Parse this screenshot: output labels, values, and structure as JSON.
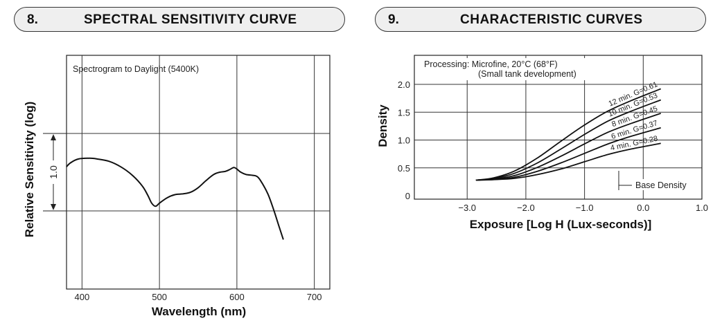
{
  "section8": {
    "number": "8.",
    "title": "SPECTRAL  SENSITIVITY  CURVE"
  },
  "section9": {
    "number": "9.",
    "title": "CHARACTERISTIC  CURVES"
  },
  "colors": {
    "line": "#111111",
    "grid": "#333333",
    "header_fill": "#efefef"
  },
  "chart_data": [
    {
      "type": "line",
      "title": "SPECTRAL SENSITIVITY CURVE",
      "annotation": "Spectrogram to Daylight (5400K)",
      "xlabel": "Wavelength (nm)",
      "ylabel": "Relative Sensitivity (log)",
      "scale_marker": "1.0",
      "xlim": [
        380,
        720
      ],
      "xticks": [
        "400",
        "500",
        "600",
        "700"
      ],
      "grid": true,
      "series": [
        {
          "x": [
            380,
            385,
            395,
            410,
            420,
            435,
            450,
            465,
            478,
            485,
            490,
            495,
            500,
            510,
            520,
            530,
            540,
            550,
            560,
            570,
            578,
            585,
            590,
            596,
            600,
            605,
            612,
            620,
            625,
            630,
            640,
            648,
            655,
            660
          ],
          "y": [
            0.57,
            0.62,
            0.67,
            0.68,
            0.67,
            0.64,
            0.57,
            0.46,
            0.32,
            0.2,
            0.1,
            0.06,
            0.1,
            0.17,
            0.21,
            0.22,
            0.24,
            0.3,
            0.39,
            0.47,
            0.5,
            0.51,
            0.53,
            0.56,
            0.54,
            0.5,
            0.47,
            0.46,
            0.45,
            0.4,
            0.22,
            0.0,
            -0.22,
            -0.37
          ]
        }
      ]
    },
    {
      "type": "line",
      "title": "CHARACTERISTIC CURVES",
      "annotation": [
        "Processing: Microfine, 20°C (68°F)",
        "(Small tank development)"
      ],
      "xlabel": "Exposure [Log H (Lux-seconds)]",
      "ylabel": "Density",
      "xlim": [
        -3.9,
        1.0
      ],
      "ylim": [
        0,
        2.2
      ],
      "xticks": [
        "−3.0",
        "−2.0",
        "−1.0",
        "0.0",
        "1.0"
      ],
      "yticks": [
        "0",
        "0.5",
        "1.0",
        "1.5",
        "2.0"
      ],
      "grid": true,
      "base_density_label": "Base Density",
      "base_density": 0.28,
      "series": [
        {
          "name": "12 min. G=0.61",
          "x": [
            -2.85,
            -2.55,
            -2.2,
            -1.8,
            -1.4,
            -1.0,
            -0.6,
            -0.2,
            0.3
          ],
          "y": [
            0.28,
            0.32,
            0.44,
            0.68,
            0.98,
            1.27,
            1.52,
            1.71,
            1.92
          ]
        },
        {
          "name": "10 min. G=0.53",
          "x": [
            -2.85,
            -2.55,
            -2.2,
            -1.8,
            -1.4,
            -1.0,
            -0.6,
            -0.2,
            0.3
          ],
          "y": [
            0.28,
            0.31,
            0.4,
            0.59,
            0.84,
            1.1,
            1.34,
            1.52,
            1.72
          ]
        },
        {
          "name": "8 min. G=0.45",
          "x": [
            -2.85,
            -2.55,
            -2.2,
            -1.8,
            -1.4,
            -1.0,
            -0.6,
            -0.2,
            0.3
          ],
          "y": [
            0.28,
            0.3,
            0.36,
            0.51,
            0.71,
            0.93,
            1.14,
            1.3,
            1.48
          ]
        },
        {
          "name": "6 min. G=0.37",
          "x": [
            -2.85,
            -2.55,
            -2.2,
            -1.8,
            -1.4,
            -1.0,
            -0.6,
            -0.2,
            0.3
          ],
          "y": [
            0.28,
            0.29,
            0.33,
            0.44,
            0.59,
            0.76,
            0.93,
            1.07,
            1.22
          ]
        },
        {
          "name": "4 min. G=0.28",
          "x": [
            -2.85,
            -2.55,
            -2.2,
            -1.8,
            -1.4,
            -1.0,
            -0.6,
            -0.2,
            0.3
          ],
          "y": [
            0.28,
            0.29,
            0.31,
            0.38,
            0.48,
            0.61,
            0.74,
            0.84,
            0.94
          ]
        }
      ]
    }
  ]
}
